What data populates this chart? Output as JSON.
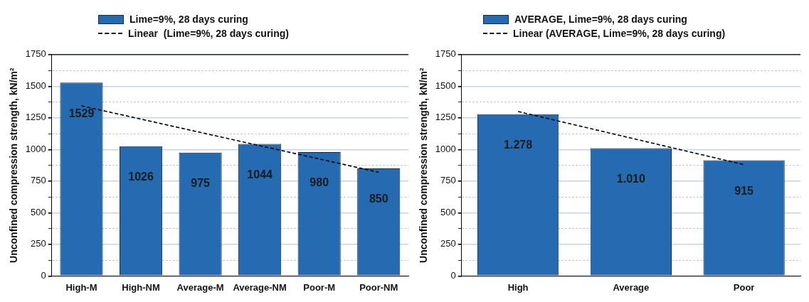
{
  "chart_data": [
    {
      "type": "bar",
      "ylabel": "Unconfined compression strength, kN/m²",
      "categories": [
        "High-M",
        "High-NM",
        "Average-M",
        "Average-NM",
        "Poor-M",
        "Poor-NM"
      ],
      "series": [
        {
          "name": "Lime=9%, 28 days curing",
          "color": "#246bb2",
          "values": [
            1529,
            1026,
            975,
            1044,
            980,
            850
          ],
          "data_labels": true
        },
        {
          "type": "line",
          "name": "Linear  (Lime=9%, 28 days curing)",
          "color": "#000000",
          "values": [
            1345,
            1240,
            1135,
            1030,
            925,
            820
          ],
          "line_style": "dashed",
          "marker": "none"
        }
      ],
      "ylim": [
        0,
        1750
      ],
      "yticks": [
        0,
        {
          "value": 125,
          "label": null
        },
        250,
        {
          "value": 375,
          "label": null
        },
        500,
        {
          "value": 625,
          "label": null
        },
        750,
        {
          "value": 875,
          "label": null
        },
        1000,
        {
          "value": 1125,
          "label": null
        },
        1250,
        {
          "value": 1375,
          "label": null
        },
        1500,
        {
          "value": 1625,
          "label": null
        },
        1750
      ],
      "grid": "y",
      "legend": "top"
    },
    {
      "type": "bar",
      "ylabel": "Unconfined compression strength, kN/m²",
      "categories": [
        "High",
        "Average",
        "Poor"
      ],
      "series": [
        {
          "name": "AVERAGE, Lime=9%, 28 days curing",
          "color": "#246bb2",
          "values": [
            1278,
            1010,
            915
          ],
          "value_labels": [
            "1.278",
            "1.010",
            "915"
          ]
        },
        {
          "type": "line",
          "name": "Linear (AVERAGE, Lime=9%, 28 days curing)",
          "color": "#000000",
          "values": [
            1300,
            1090,
            880
          ],
          "line_style": "dashed",
          "marker": "none"
        }
      ],
      "ylim": [
        0,
        1750
      ],
      "yticks": [
        0,
        {
          "value": 125,
          "label": null
        },
        250,
        {
          "value": 375,
          "label": null
        },
        500,
        {
          "value": 625,
          "label": null
        },
        750,
        {
          "value": 875,
          "label": null
        },
        1000,
        {
          "value": 1125,
          "label": null
        },
        1250,
        {
          "value": 1375,
          "label": null
        },
        1500,
        {
          "value": 1625,
          "label": null
        },
        1750
      ],
      "grid": "y",
      "legend": "top"
    }
  ]
}
